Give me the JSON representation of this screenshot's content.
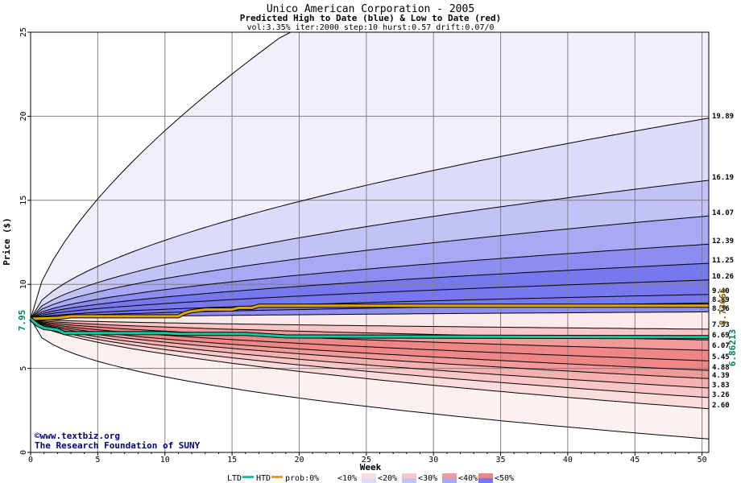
{
  "chart_data": {
    "type": "area",
    "title": "Unico American Corporation - 2005",
    "subtitle": "Predicted High to Date (blue) &  Low to Date (red)",
    "params": "vol:3.35% iter:2000 step:10 hurst:0.57 drift:0.07/0",
    "xlabel": "Week",
    "ylabel": "Price ($)",
    "xlim": [
      0,
      50.5
    ],
    "ylim": [
      0,
      25
    ],
    "xticks": [
      0,
      5,
      10,
      15,
      20,
      25,
      30,
      35,
      40,
      45,
      50
    ],
    "yticks": [
      0,
      5,
      10,
      15,
      20,
      25
    ],
    "grid": true,
    "start_price": 7.95,
    "start_label": "7.95",
    "high_series_end": [
      {
        "label": "19.89",
        "value": 19.89
      },
      {
        "label": "16.19",
        "value": 16.19
      },
      {
        "label": "14.07",
        "value": 14.07
      },
      {
        "label": "12.39",
        "value": 12.39
      },
      {
        "label": "11.25",
        "value": 11.25
      },
      {
        "label": "10.26",
        "value": 10.26
      },
      {
        "label": "9.40",
        "value": 9.4
      },
      {
        "label": "8.89",
        "value": 8.89
      },
      {
        "label": "8.36",
        "value": 8.36
      }
    ],
    "low_series_end": [
      {
        "label": "7.33",
        "value": 7.33
      },
      {
        "label": "6.69",
        "value": 6.69
      },
      {
        "label": "6.07",
        "value": 6.07
      },
      {
        "label": "5.45",
        "value": 5.45
      },
      {
        "label": "4.88",
        "value": 4.88
      },
      {
        "label": "4.39",
        "value": 4.39
      },
      {
        "label": "3.83",
        "value": 3.83
      },
      {
        "label": "3.26",
        "value": 3.26
      },
      {
        "label": "2.60",
        "value": 2.6
      }
    ],
    "outer_high_end": 40,
    "outer_low_end": 0.8,
    "actual_high_label": "8.73666",
    "actual_low_label": "6.86213",
    "actual_high": [
      [
        0,
        7.95
      ],
      [
        2,
        8.0
      ],
      [
        3,
        8.1
      ],
      [
        7,
        8.1
      ],
      [
        11,
        8.1
      ],
      [
        11.5,
        8.3
      ],
      [
        12,
        8.4
      ],
      [
        13,
        8.5
      ],
      [
        15,
        8.5
      ],
      [
        15.5,
        8.6
      ],
      [
        16.5,
        8.6
      ],
      [
        17,
        8.73
      ],
      [
        50.5,
        8.73
      ]
    ],
    "actual_low": [
      [
        0,
        7.95
      ],
      [
        0.5,
        7.6
      ],
      [
        1,
        7.4
      ],
      [
        2,
        7.3
      ],
      [
        2.5,
        7.1
      ],
      [
        10,
        7.1
      ],
      [
        11,
        7.05
      ],
      [
        16,
        7.05
      ],
      [
        17,
        7.0
      ],
      [
        18,
        6.95
      ],
      [
        19,
        6.9
      ],
      [
        50.5,
        6.86
      ]
    ],
    "colors": {
      "high_line": "#e0a800",
      "low_line": "#10c8a0",
      "grid": "#808080",
      "title": "#000000",
      "high_label": "#806000",
      "low_label": "#008060",
      "watermark": "#000080"
    },
    "band_fills": {
      "blue": [
        "#f0f0fd",
        "#dcdcfa",
        "#c2c2f7",
        "#a8a8f4",
        "#8c8cf1",
        "#7878ee"
      ],
      "red": [
        "#fdf0f0",
        "#fbdcdc",
        "#f8c6c6",
        "#f5b0b0",
        "#f29a9a",
        "#ef8686"
      ]
    }
  },
  "watermark": {
    "line1": "©www.textbiz.org",
    "line2": "The Research Foundation of SUNY"
  },
  "legend": {
    "ltd": "LTD",
    "htd": "HTD",
    "prob": "prob:0%",
    "p10": "<10%",
    "p20": "<20%",
    "p30": "<30%",
    "p40": "<40%",
    "p50": "<50%"
  }
}
